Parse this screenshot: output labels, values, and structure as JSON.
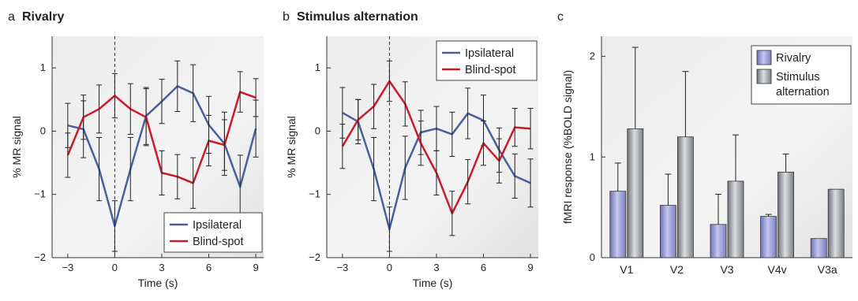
{
  "figure": {
    "panel_a": {
      "letter": "a",
      "title": "Rivalry"
    },
    "panel_b": {
      "letter": "b",
      "title": "Stimulus alternation"
    },
    "panel_c": {
      "letter": "c",
      "title": ""
    }
  },
  "colors": {
    "ipsilateral": "#4a5f9c",
    "blind_spot": "#cc1a2a",
    "rivalry_bar": "#9a9ed4",
    "stimulus_bar": "#a9adb1"
  },
  "chart_data": [
    {
      "type": "line",
      "panel": "a",
      "title": "Rivalry",
      "xlabel": "Time (s)",
      "ylabel": "% MR signal",
      "xlim": [
        -4,
        9.5
      ],
      "ylim": [
        -2,
        1.5
      ],
      "xticks": [
        -3,
        0,
        3,
        6,
        9
      ],
      "yticks": [
        -2,
        -1,
        0,
        1
      ],
      "x": [
        -3,
        -2,
        -1,
        0,
        1,
        2,
        3,
        4,
        5,
        6,
        7,
        8,
        9
      ],
      "series": [
        {
          "name": "Ipsilateral",
          "color": "#4a5f9c",
          "values": [
            0.09,
            0.03,
            -0.6,
            -1.5,
            -0.6,
            0.24,
            0.47,
            0.71,
            0.6,
            0.1,
            -0.2,
            -0.88,
            0.04
          ],
          "errors": [
            0.35,
            0.45,
            0.5,
            0.4,
            0.5,
            0.45,
            0.35,
            0.4,
            0.45,
            0.45,
            0.5,
            0.5,
            0.45
          ]
        },
        {
          "name": "Blind-spot",
          "color": "#cc1a2a",
          "values": [
            -0.38,
            0.22,
            0.35,
            0.56,
            0.35,
            0.22,
            -0.66,
            -0.72,
            -0.82,
            -0.15,
            -0.22,
            0.62,
            0.53
          ],
          "errors": [
            0.35,
            0.35,
            0.38,
            0.35,
            0.4,
            0.45,
            0.35,
            0.35,
            0.4,
            0.4,
            0.4,
            0.32,
            0.3
          ]
        }
      ],
      "legend_position": "bottom-right"
    },
    {
      "type": "line",
      "panel": "b",
      "title": "Stimulus alternation",
      "xlabel": "Time (s)",
      "ylabel": "% MR signal",
      "xlim": [
        -4,
        9.5
      ],
      "ylim": [
        -2,
        1.5
      ],
      "xticks": [
        -3,
        0,
        3,
        6,
        9
      ],
      "yticks": [
        -2,
        -1,
        0,
        1
      ],
      "x": [
        -3,
        -2,
        -1,
        0,
        1,
        2,
        3,
        4,
        5,
        6,
        7,
        8,
        9
      ],
      "series": [
        {
          "name": "Ipsilateral",
          "color": "#4a5f9c",
          "values": [
            0.29,
            0.15,
            -0.6,
            -1.55,
            -0.58,
            -0.02,
            0.04,
            -0.05,
            0.28,
            0.17,
            -0.3,
            -0.71,
            -0.82
          ],
          "errors": [
            0.4,
            0.35,
            0.5,
            0.35,
            0.5,
            0.35,
            0.35,
            0.35,
            0.4,
            0.4,
            0.35,
            0.35,
            0.38
          ]
        },
        {
          "name": "Blind-spot",
          "color": "#cc1a2a",
          "values": [
            -0.24,
            0.18,
            0.39,
            0.79,
            0.43,
            -0.19,
            -0.66,
            -1.3,
            -0.8,
            -0.19,
            -0.47,
            0.06,
            0.04
          ],
          "errors": [
            0.35,
            0.32,
            0.35,
            0.32,
            0.35,
            0.35,
            0.35,
            0.35,
            0.35,
            0.35,
            0.35,
            0.3,
            0.32
          ]
        }
      ],
      "legend_position": "top-right"
    },
    {
      "type": "bar",
      "panel": "c",
      "title": "",
      "xlabel": "",
      "ylabel": "fMRI response (%BOLD signal)",
      "ylim": [
        0,
        2.2
      ],
      "yticks": [
        0,
        1,
        2
      ],
      "categories": [
        "V1",
        "V2",
        "V3",
        "V4v",
        "V3a"
      ],
      "series": [
        {
          "name": "Rivalry",
          "color": "#9a9ed4",
          "values": [
            0.66,
            0.52,
            0.33,
            0.41,
            0.19
          ],
          "errors": [
            0.28,
            0.31,
            0.3,
            0.02,
            0
          ]
        },
        {
          "name": "Stimulus alternation",
          "color": "#a9adb1",
          "values": [
            1.28,
            1.2,
            0.76,
            0.85,
            0.68
          ],
          "errors": [
            0.81,
            0.65,
            0.46,
            0.18,
            0
          ]
        }
      ],
      "legend_labels": [
        "Rivalry",
        "Stimulus\nalternation"
      ],
      "legend_position": "top-right"
    }
  ]
}
